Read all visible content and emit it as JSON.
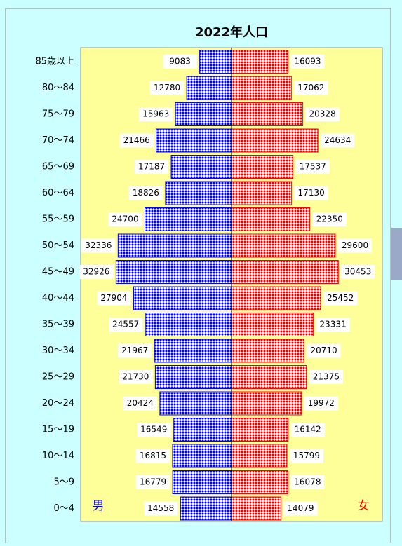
{
  "chart_data": {
    "type": "pyramid",
    "title": "2022年人口",
    "categories": [
      "85歳以上",
      "80〜84",
      "75〜79",
      "70〜74",
      "65〜69",
      "60〜64",
      "55〜59",
      "50〜54",
      "45〜49",
      "40〜44",
      "35〜39",
      "30〜34",
      "25〜29",
      "20〜24",
      "15〜19",
      "10〜14",
      "5〜9",
      "0〜4"
    ],
    "series": [
      {
        "name": "男",
        "color": "#0000ff",
        "values": [
          9083,
          12780,
          15963,
          21466,
          17187,
          18826,
          24700,
          32336,
          32926,
          27904,
          24557,
          21967,
          21730,
          20424,
          16549,
          16815,
          16779,
          14558
        ]
      },
      {
        "name": "女",
        "color": "#ff0000",
        "values": [
          16093,
          17062,
          20328,
          24634,
          17537,
          17130,
          22350,
          29600,
          30453,
          25452,
          23331,
          20710,
          21375,
          19972,
          16142,
          15799,
          16078,
          14079
        ]
      }
    ],
    "xlim": [
      0,
      43000
    ]
  }
}
